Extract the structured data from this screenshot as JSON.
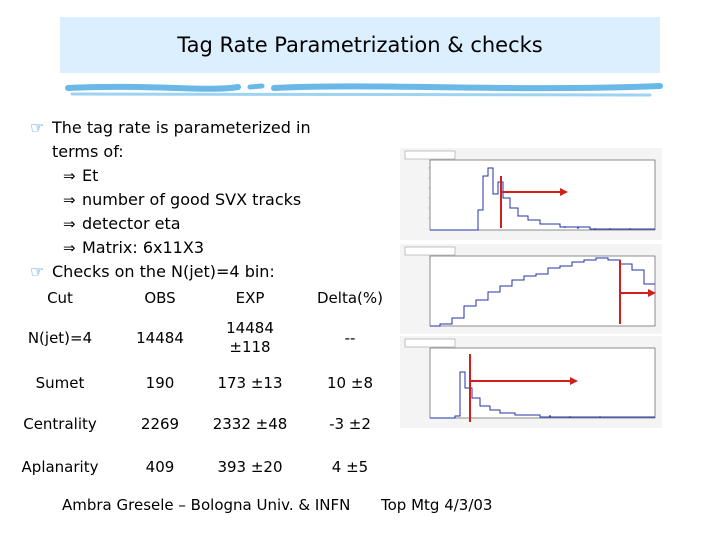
{
  "title": "Tag Rate Parametrization & checks",
  "bullets": {
    "b1_line1": "The tag rate is parameterized in",
    "b1_line2": "terms of:",
    "sub_items": [
      "Et",
      "number of good SVX tracks",
      "detector eta",
      "Matrix: 6x11X3"
    ],
    "b2": "Checks on the N(jet)=4 bin:"
  },
  "table": {
    "headers": [
      "Cut",
      "OBS",
      "EXP",
      "Delta(%)"
    ],
    "rows": [
      {
        "cut": "N(jet)=4",
        "obs": "14484",
        "exp_line1": "14484",
        "exp_line2": "±118",
        "delta": "--"
      },
      {
        "cut": "Sumet",
        "obs": "190",
        "exp": "173 ±13",
        "delta": "10 ±8"
      },
      {
        "cut": "Centrality",
        "obs": "2269",
        "exp": "2332 ±48",
        "delta": "-3 ±2"
      },
      {
        "cut": "Aplanarity",
        "obs": "409",
        "exp": "393 ±20",
        "delta": "4 ±5"
      }
    ]
  },
  "footer": {
    "author": "Ambra Gresele – Bologna Univ. & INFN",
    "meeting": "Top Mtg 4/3/03"
  },
  "colors": {
    "title_bg": "#dcefff",
    "brush": "#6ab8e8",
    "bullet": "#2a7fd4",
    "arrow": "#d0201e",
    "histogram": "#2233aa"
  }
}
